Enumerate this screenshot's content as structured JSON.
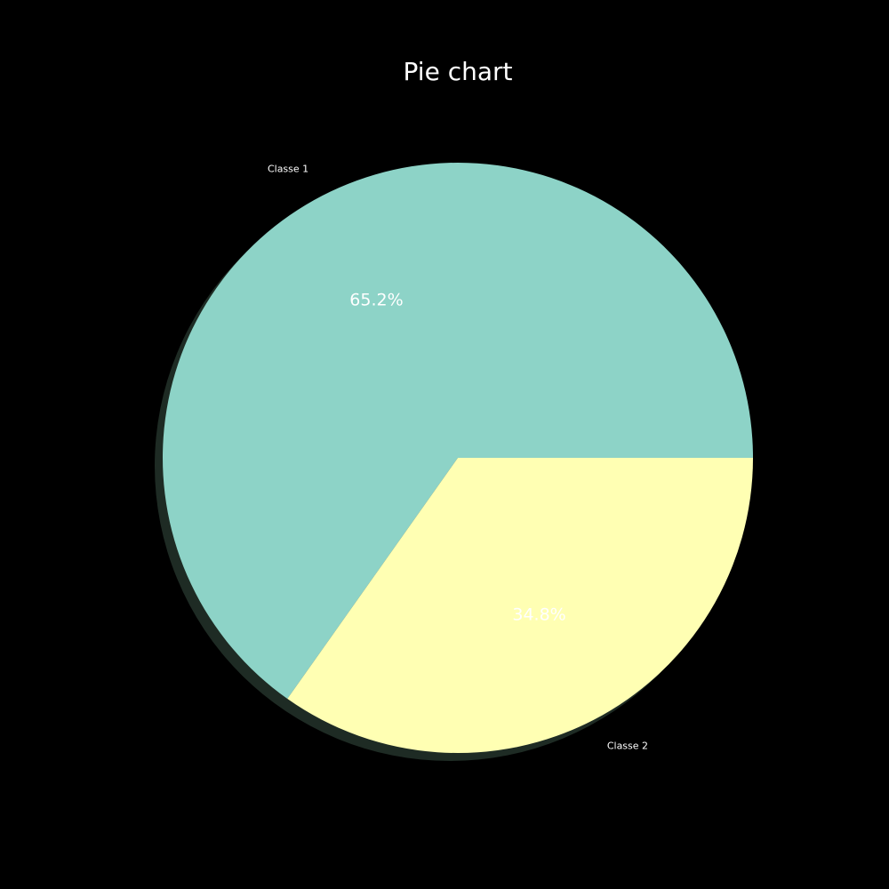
{
  "chart_data": {
    "type": "pie",
    "title": "Pie chart",
    "categories": [
      "Classe 1",
      "Classe 2"
    ],
    "values": [
      65.2,
      34.8
    ],
    "percent_labels": [
      "65.2%",
      "34.8%"
    ],
    "colors": [
      "#8dd3c7",
      "#ffffb3"
    ],
    "background_color": "#000000",
    "text_color": "#ffffff",
    "shadow": true,
    "start_angle_degrees": 0,
    "direction": "counterclockwise"
  }
}
